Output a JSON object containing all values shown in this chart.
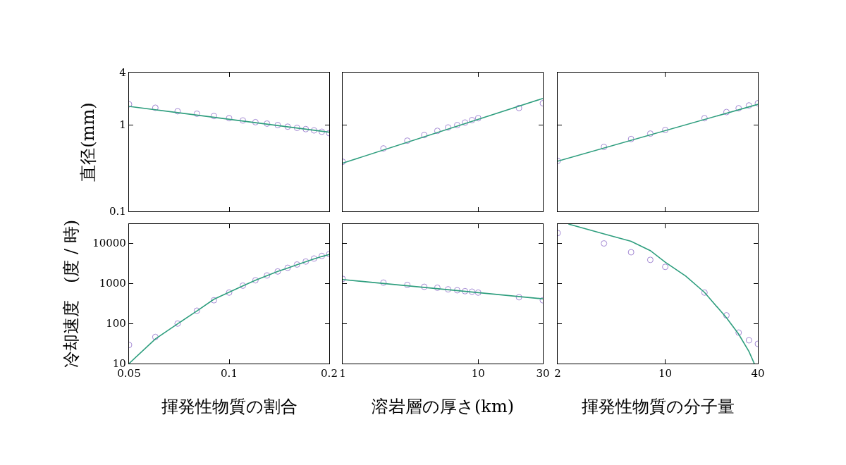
{
  "chart_data": [
    {
      "type": "scatter",
      "ylabel": "直径(mm)",
      "log": "xy",
      "tick_labels": "y",
      "xlim": [
        0.05,
        0.2
      ],
      "xticks": [
        0.05,
        0.1,
        0.2
      ],
      "ylim": [
        0.1,
        4
      ],
      "yticks": [
        0.1,
        1,
        4
      ],
      "series": [
        {
          "marker": "circle",
          "color": "#a48ad4",
          "x": [
            0.05,
            0.06,
            0.07,
            0.08,
            0.09,
            0.1,
            0.11,
            0.12,
            0.13,
            0.14,
            0.15,
            0.16,
            0.17,
            0.18,
            0.19,
            0.2
          ],
          "values": [
            1.72,
            1.57,
            1.43,
            1.34,
            1.26,
            1.19,
            1.12,
            1.07,
            1.03,
            0.99,
            0.95,
            0.92,
            0.89,
            0.86,
            0.83,
            0.8
          ]
        },
        {
          "type": "line",
          "marker": "none",
          "line_style": "solid",
          "color": "#2e9e7e",
          "x": [
            0.05,
            0.2
          ],
          "values": [
            1.63,
            0.82
          ]
        }
      ]
    },
    {
      "type": "scatter",
      "log": "xy",
      "tick_labels": false,
      "xlim": [
        1,
        30
      ],
      "xticks": [
        1,
        10,
        30
      ],
      "ylim": [
        0.1,
        4
      ],
      "yticks": [
        0.1,
        1,
        4
      ],
      "series": [
        {
          "marker": "circle",
          "color": "#a48ad4",
          "x": [
            1,
            2,
            3,
            4,
            5,
            6,
            7,
            8,
            9,
            10,
            20,
            30
          ],
          "values": [
            0.374,
            0.533,
            0.655,
            0.76,
            0.85,
            0.93,
            0.99,
            1.06,
            1.13,
            1.19,
            1.56,
            1.77
          ]
        },
        {
          "type": "line",
          "marker": "none",
          "line_style": "solid",
          "color": "#2e9e7e",
          "x": [
            1,
            30
          ],
          "values": [
            0.36,
            2.01
          ]
        }
      ]
    },
    {
      "type": "scatter",
      "log": "xy",
      "tick_labels": false,
      "xlim": [
        2,
        40
      ],
      "xticks": [
        2,
        10,
        40
      ],
      "ylim": [
        0.1,
        4
      ],
      "yticks": [
        0.1,
        1,
        4
      ],
      "series": [
        {
          "marker": "circle",
          "color": "#a48ad4",
          "x": [
            2,
            4,
            6,
            8,
            10,
            18,
            25,
            30,
            35,
            40
          ],
          "values": [
            0.383,
            0.554,
            0.684,
            0.79,
            0.87,
            1.19,
            1.4,
            1.55,
            1.67,
            1.77
          ]
        },
        {
          "type": "line",
          "marker": "none",
          "line_style": "solid",
          "color": "#2e9e7e",
          "x": [
            2,
            40
          ],
          "values": [
            0.38,
            1.72
          ]
        }
      ]
    },
    {
      "type": "scatter",
      "xlabel": "揮発性物質の割合",
      "ylabel": "冷却速度　(度 / 時)",
      "log": "xy",
      "xlim": [
        0.05,
        0.2
      ],
      "xticks": [
        0.05,
        0.1,
        0.2
      ],
      "ylim": [
        10,
        30000
      ],
      "yticks": [
        10,
        100,
        1000,
        10000
      ],
      "series": [
        {
          "marker": "circle",
          "color": "#a48ad4",
          "x": [
            0.05,
            0.06,
            0.07,
            0.08,
            0.09,
            0.1,
            0.11,
            0.12,
            0.13,
            0.14,
            0.15,
            0.16,
            0.17,
            0.18,
            0.19,
            0.2
          ],
          "values": [
            29,
            46,
            99,
            208,
            378,
            587,
            875,
            1190,
            1570,
            1970,
            2440,
            2940,
            3490,
            4150,
            4810,
            5340
          ]
        },
        {
          "type": "line",
          "marker": "none",
          "line_style": "solid",
          "color": "#2e9e7e",
          "x": [
            0.05,
            0.06,
            0.07,
            0.08,
            0.09,
            0.1,
            0.11,
            0.12,
            0.13,
            0.14,
            0.15,
            0.16,
            0.17,
            0.18,
            0.19,
            0.2
          ],
          "values": [
            10,
            41,
            98,
            205,
            400,
            600,
            865,
            1190,
            1550,
            1970,
            2400,
            2900,
            3450,
            4050,
            4650,
            5220
          ]
        }
      ]
    },
    {
      "type": "scatter",
      "xlabel": "溶岩層の厚さ(km)",
      "log": "xy",
      "tick_labels": "x",
      "xlim": [
        1,
        30
      ],
      "xticks": [
        1,
        10,
        30
      ],
      "ylim": [
        10,
        30000
      ],
      "yticks": [
        10,
        100,
        1000,
        10000
      ],
      "series": [
        {
          "marker": "circle",
          "color": "#a48ad4",
          "x": [
            1,
            2,
            3,
            4,
            5,
            6,
            7,
            8,
            9,
            10,
            20,
            30
          ],
          "values": [
            1290,
            1040,
            911,
            819,
            776,
            708,
            671,
            636,
            619,
            587,
            450,
            378
          ]
        },
        {
          "type": "line",
          "marker": "none",
          "line_style": "solid",
          "color": "#2e9e7e",
          "x": [
            1,
            30
          ],
          "values": [
            1240,
            410
          ]
        }
      ]
    },
    {
      "type": "scatter",
      "xlabel": "揮発性物質の分子量",
      "log": "xy",
      "tick_labels": "x",
      "xlim": [
        2,
        40
      ],
      "xticks": [
        2,
        10,
        40
      ],
      "ylim": [
        10,
        30000
      ],
      "yticks": [
        10,
        100,
        1000,
        10000
      ],
      "series": [
        {
          "marker": "circle",
          "color": "#a48ad4",
          "x": [
            2,
            4,
            6,
            8,
            10,
            18,
            25,
            30,
            35,
            40
          ],
          "values": [
            17900,
            9860,
            5950,
            3840,
            2570,
            587,
            159,
            59,
            38,
            31
          ]
        },
        {
          "type": "line",
          "marker": "none",
          "line_style": "solid",
          "color": "#2e9e7e",
          "x": [
            2.35,
            4,
            6,
            8,
            10,
            13.6,
            18,
            25,
            30,
            35,
            37.9
          ],
          "values": [
            30000,
            17000,
            11100,
            6530,
            3360,
            1510,
            595,
            138,
            54,
            20,
            10
          ]
        }
      ]
    }
  ]
}
